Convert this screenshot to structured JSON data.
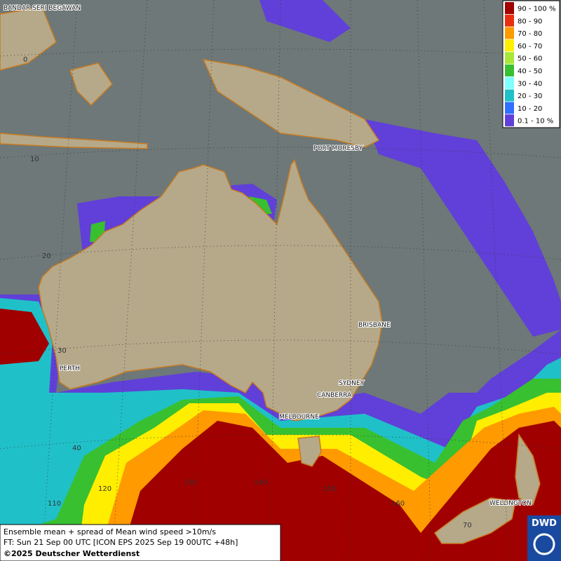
{
  "map": {
    "cities": [
      "BANDAR SERI BEGAWAN",
      "PORT MORESBY",
      "BRISBANE",
      "PERTH",
      "SYDNEY",
      "CANBERRA",
      "MELBOURNE",
      "WELLINGTON"
    ],
    "lat_labels": [
      "0",
      "10",
      "20",
      "30",
      "40"
    ],
    "lon_labels": [
      "110",
      "120",
      "130",
      "140",
      "150",
      "160",
      "70"
    ]
  },
  "legend": {
    "items": [
      {
        "label": "90 - 100 %",
        "color": "#a00000"
      },
      {
        "label": "80 - 90",
        "color": "#e83010"
      },
      {
        "label": "70 - 80",
        "color": "#ff9a00"
      },
      {
        "label": "60 - 70",
        "color": "#ffee00"
      },
      {
        "label": "50 - 60",
        "color": "#a8e83a"
      },
      {
        "label": "40 - 50",
        "color": "#38c030"
      },
      {
        "label": "30 - 40",
        "color": "#80ffff"
      },
      {
        "label": "20 - 30",
        "color": "#20c0c8"
      },
      {
        "label": "10 - 20",
        "color": "#3070ff"
      },
      {
        "label": "0.1 - 10 %",
        "color": "#6040d8"
      }
    ]
  },
  "footer": {
    "line1": "Ensemble mean + spread of Mean wind speed >10m/s",
    "line2": "FT: Sun 21 Sep 00 UTC [ICON EPS 2025 Sep 19 00UTC +48h]",
    "line3": "©2025 Deutscher Wetterdienst"
  },
  "logo": "DWD"
}
